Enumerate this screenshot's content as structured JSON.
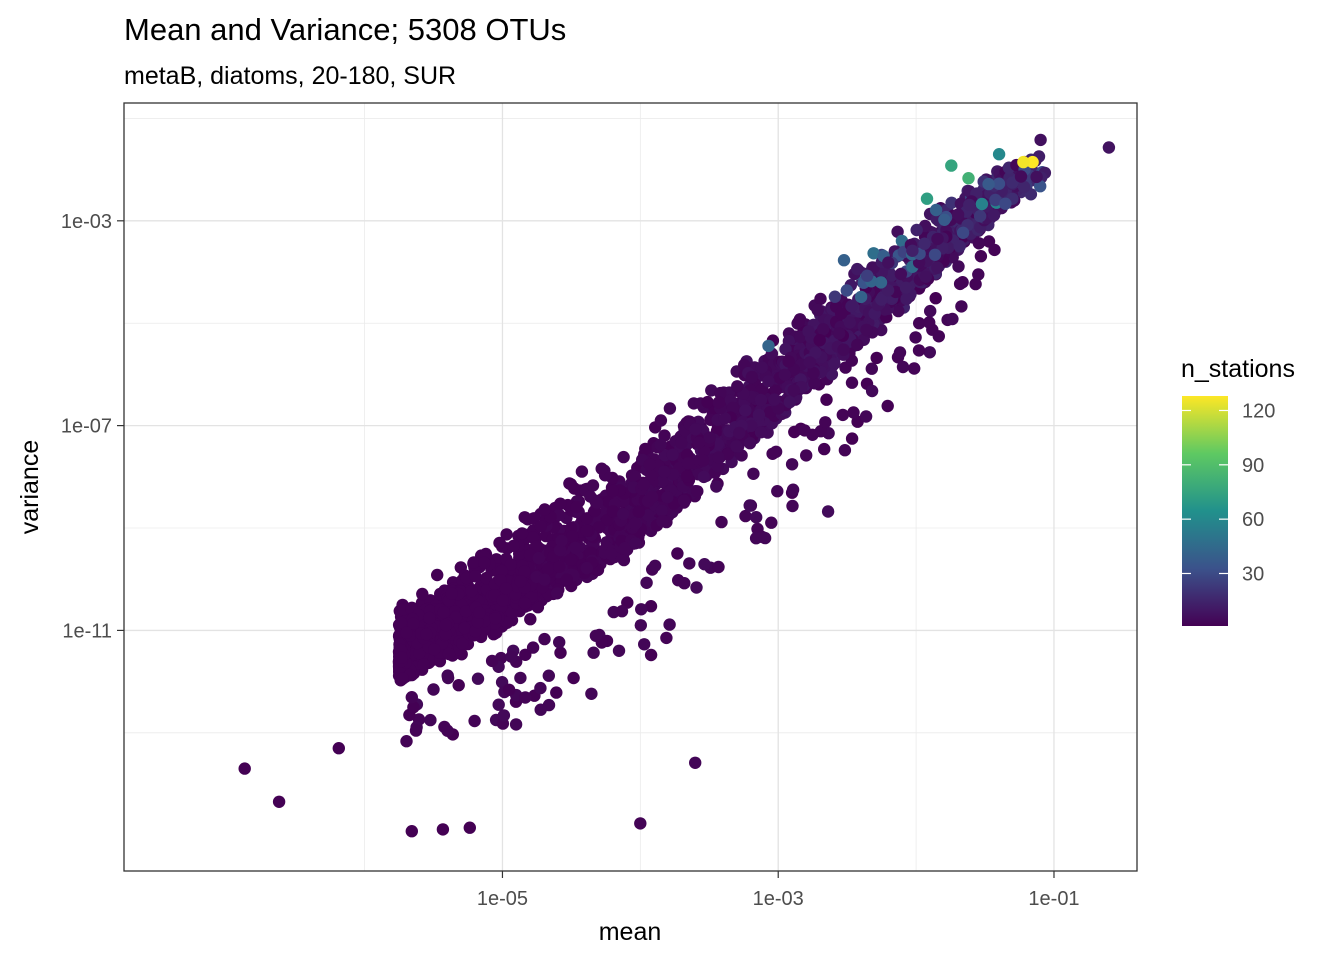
{
  "chart_data": {
    "type": "scatter",
    "title": "Mean and Variance; 5308 OTUs",
    "subtitle": "metaB, diatoms, 20-180, SUR",
    "xlabel": "mean",
    "ylabel": "variance",
    "x_scale": "log10",
    "y_scale": "log10",
    "xlim": [
      1.8e-08,
      0.4
    ],
    "ylim": [
      2e-16,
      0.2
    ],
    "x_ticks": [
      1e-05,
      0.001,
      0.1
    ],
    "x_tick_labels": [
      "1e-05",
      "1e-03",
      "1e-01"
    ],
    "y_ticks": [
      1e-11,
      1e-07,
      0.001
    ],
    "y_tick_labels": [
      "1e-11",
      "1e-07",
      "1e-03"
    ],
    "grid": true,
    "point_color_by": "n_stations",
    "colorscale": "viridis",
    "color_range": [
      1,
      128
    ],
    "legend": {
      "title": "n_stations",
      "ticks": [
        30,
        60,
        90,
        120
      ],
      "tick_labels": [
        "30",
        "60",
        "90",
        "120"
      ],
      "position": "right",
      "colors": [
        "#440154",
        "#3b528b",
        "#21918c",
        "#5ec962",
        "#fde725"
      ]
    },
    "notable_points": [
      {
        "x": 0.25,
        "y": 0.027,
        "n_stations": 8
      },
      {
        "x": 0.08,
        "y": 0.038,
        "n_stations": 7
      },
      {
        "x": 0.07,
        "y": 0.014,
        "n_stations": 128
      },
      {
        "x": 0.06,
        "y": 0.014,
        "n_stations": 126
      },
      {
        "x": 0.04,
        "y": 0.02,
        "n_stations": 60
      },
      {
        "x": 0.024,
        "y": 0.0068,
        "n_stations": 82
      },
      {
        "x": 0.018,
        "y": 0.012,
        "n_stations": 75
      },
      {
        "x": 0.012,
        "y": 0.0027,
        "n_stations": 72
      },
      {
        "x": 0.003,
        "y": 0.00017,
        "n_stations": 40
      },
      {
        "x": 0.00085,
        "y": 3.6e-06,
        "n_stations": 42
      },
      {
        "x": 0.0023,
        "y": 2.1e-09,
        "n_stations": 5
      },
      {
        "x": 0.00025,
        "y": 2.6e-14,
        "n_stations": 3
      },
      {
        "x": 0.0001,
        "y": 1.7e-15,
        "n_stations": 2
      },
      {
        "x": 7e-05,
        "y": 4e-12,
        "n_stations": 3
      },
      {
        "x": 1.35e-07,
        "y": 2e-14,
        "n_stations": 1
      },
      {
        "x": 6.5e-07,
        "y": 5e-14,
        "n_stations": 1
      },
      {
        "x": 2.4e-07,
        "y": 4.5e-15,
        "n_stations": 1
      },
      {
        "x": 3.7e-06,
        "y": 1.3e-15,
        "n_stations": 1
      },
      {
        "x": 5.8e-06,
        "y": 1.4e-15,
        "n_stations": 1
      },
      {
        "x": 2.2e-06,
        "y": 1.2e-15,
        "n_stations": 1
      }
    ],
    "trend": {
      "description": "variance increases roughly with mean squared; bulk of points along a band",
      "band": [
        {
          "mean": 2e-06,
          "variance_upper": 3e-11,
          "variance_lower": 5e-14
        },
        {
          "mean": 1e-05,
          "variance_upper": 1e-09,
          "variance_lower": 1e-13
        },
        {
          "mean": 0.0001,
          "variance_upper": 1e-07,
          "variance_lower": 1e-12
        },
        {
          "mean": 0.001,
          "variance_upper": 1e-05,
          "variance_lower": 1e-09
        },
        {
          "mean": 0.01,
          "variance_upper": 0.001,
          "variance_lower": 1e-06
        },
        {
          "mean": 0.1,
          "variance_upper": 0.05,
          "variance_lower": 0.01
        }
      ]
    }
  }
}
